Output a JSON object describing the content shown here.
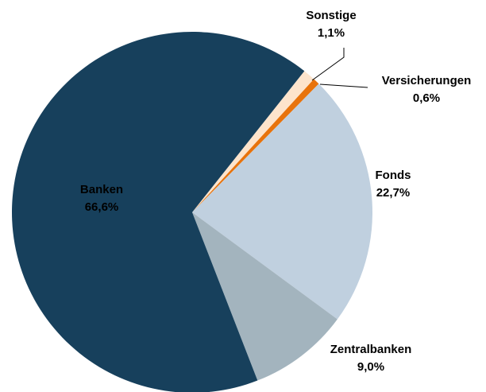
{
  "chart_data": {
    "type": "pie",
    "categories": [
      "Sonstige",
      "Versicherungen",
      "Fonds",
      "Zentralbanken",
      "Banken"
    ],
    "values": [
      1.1,
      0.6,
      22.7,
      9.0,
      66.6
    ],
    "value_labels": [
      "1,1%",
      "0,6%",
      "22,7%",
      "9,0%",
      "66,6%"
    ],
    "colors": [
      "#fde4cc",
      "#e8730c",
      "#c0d0df",
      "#a3b4be",
      "#17405c"
    ]
  }
}
